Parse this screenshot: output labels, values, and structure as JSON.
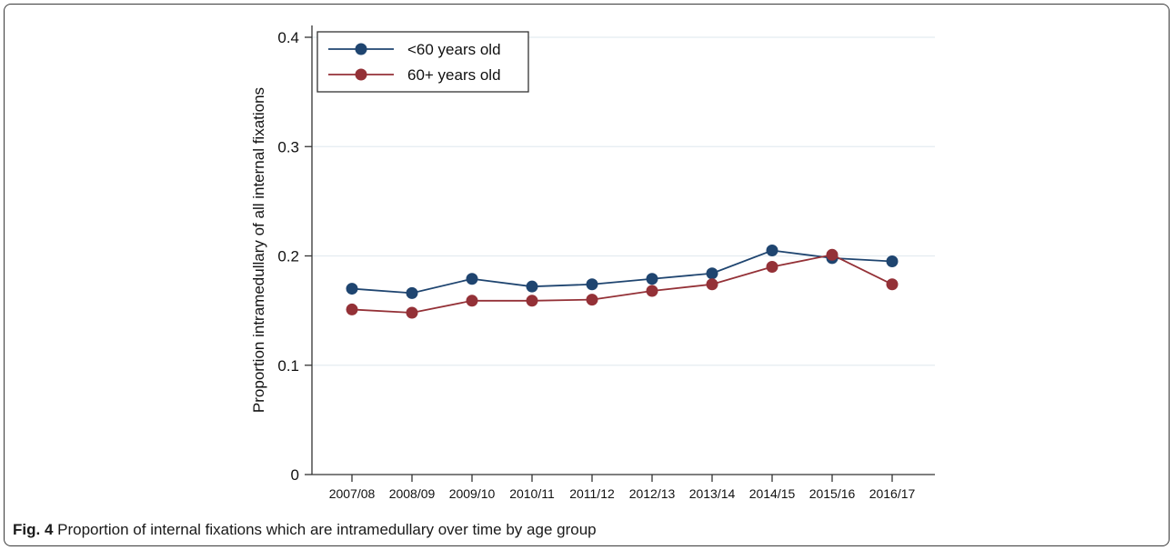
{
  "figure": {
    "caption_label": "Fig. 4",
    "caption_text": " Proportion of internal fixations which are intramedullary over time by age group"
  },
  "colors": {
    "under60": "#1f4570",
    "over60": "#943137",
    "gridline": "#e4ecf0",
    "axis": "#333333"
  },
  "chart_data": {
    "type": "line",
    "title": "",
    "xlabel": "",
    "ylabel": "Proportion intramedullary of all internal fixations",
    "categories": [
      "2007/08",
      "2008/09",
      "2009/10",
      "2010/11",
      "2011/12",
      "2012/13",
      "2013/14",
      "2014/15",
      "2015/16",
      "2016/17"
    ],
    "ylim": [
      0,
      0.4
    ],
    "yticks": [
      0,
      0.1,
      0.2,
      0.3,
      0.4
    ],
    "ytick_labels": [
      "0",
      "0.1",
      "0.2",
      "0.3",
      "0.4"
    ],
    "grid": true,
    "legend_position": "top-left",
    "series": [
      {
        "name": "<60 years old",
        "values": [
          0.17,
          0.166,
          0.179,
          0.172,
          0.174,
          0.179,
          0.184,
          0.205,
          0.198,
          0.195
        ]
      },
      {
        "name": "60+ years old",
        "values": [
          0.151,
          0.148,
          0.159,
          0.159,
          0.16,
          0.168,
          0.174,
          0.19,
          0.201,
          0.174
        ]
      }
    ]
  }
}
